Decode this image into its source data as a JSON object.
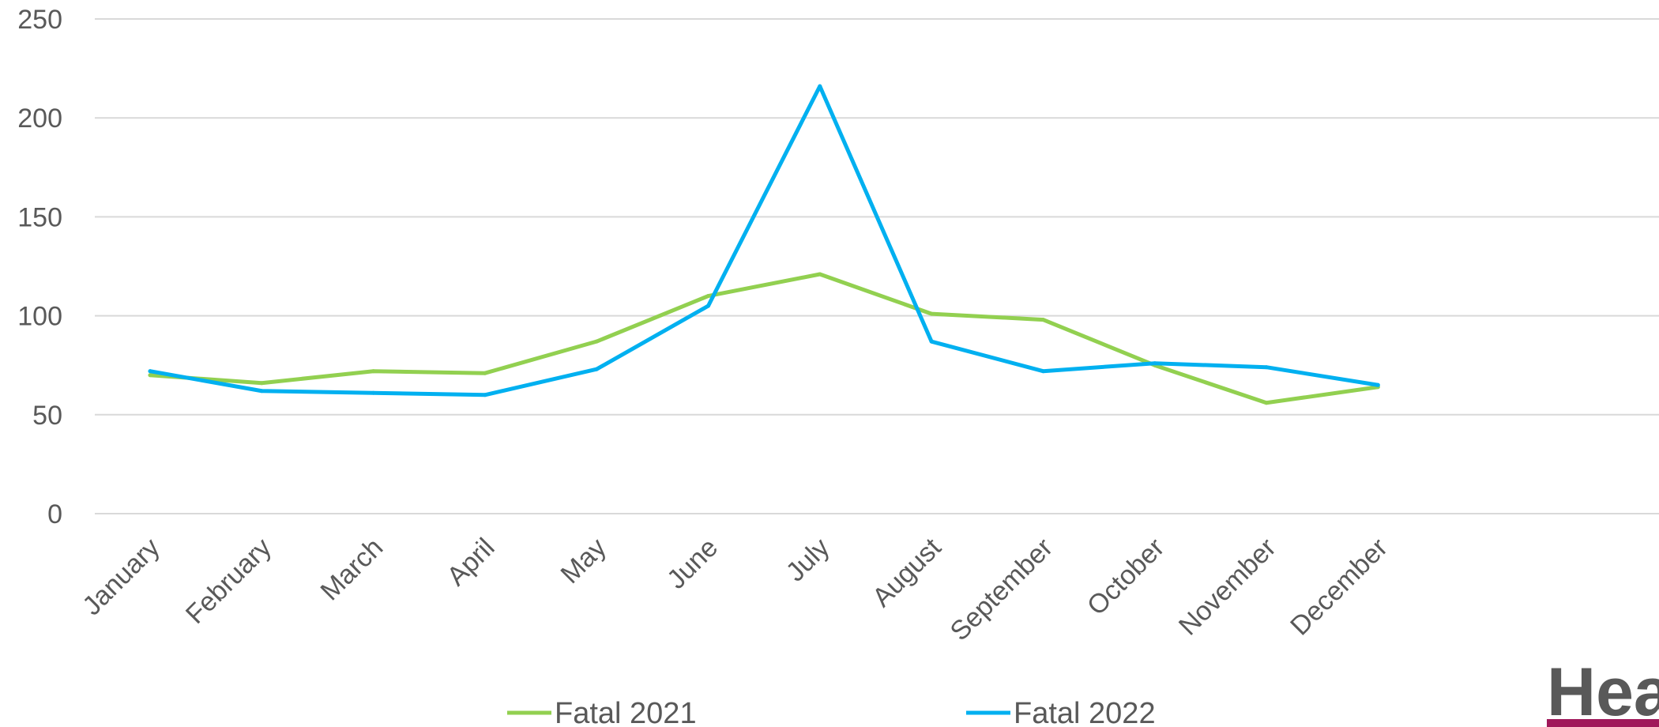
{
  "chart_data": {
    "type": "line",
    "categories": [
      "January",
      "February",
      "March",
      "April",
      "May",
      "June",
      "July",
      "August",
      "September",
      "October",
      "November",
      "December"
    ],
    "series": [
      {
        "name": "Fatal 2021",
        "color": "#92d050",
        "values": [
          70,
          66,
          72,
          71,
          87,
          110,
          121,
          101,
          98,
          75,
          56,
          64
        ]
      },
      {
        "name": "Fatal 2022",
        "color": "#00b0f0",
        "values": [
          72,
          62,
          61,
          60,
          73,
          105,
          216,
          87,
          72,
          76,
          74,
          65
        ]
      }
    ],
    "ylim": [
      0,
      250
    ],
    "yticks": [
      0,
      50,
      100,
      150,
      200,
      250
    ],
    "grid": true,
    "legend_position": "bottom",
    "title": "",
    "xlabel": "",
    "ylabel": ""
  },
  "logo": {
    "text": "Hea",
    "primary_color": "#7ab648",
    "secondary_color": "#a0185a"
  }
}
